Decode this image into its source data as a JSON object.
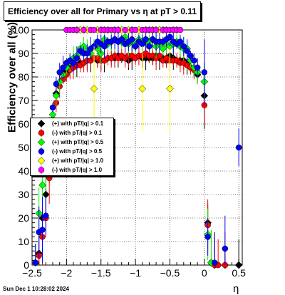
{
  "chart_data": {
    "type": "scatter",
    "title": "Efficiency over all for Primary vs    η at pT > 0.11",
    "xlabel": "η",
    "ylabel": "Efficiency over all (%)",
    "xlim": [
      -2.5,
      0.55
    ],
    "ylim": [
      0,
      100
    ],
    "xticks": [
      -2.5,
      -2,
      -1.5,
      -1,
      -0.5,
      0,
      0.5
    ],
    "yticks": [
      0,
      10,
      20,
      30,
      40,
      50,
      60,
      70,
      80,
      90,
      100
    ],
    "grid": true,
    "legend_position": "left-middle",
    "series": [
      {
        "name": "(+) with pT/|q| > 0.1",
        "color": "#000000",
        "marker": "diamond",
        "points": [
          [
            -2.45,
            1
          ],
          [
            -2.4,
            5
          ],
          [
            -2.35,
            20
          ],
          [
            -2.3,
            30
          ],
          [
            -2.25,
            46
          ],
          [
            -2.2,
            62
          ],
          [
            -2.15,
            73
          ],
          [
            -2.05,
            82
          ],
          [
            -2.0,
            82
          ],
          [
            -1.95,
            84
          ],
          [
            -1.9,
            85
          ],
          [
            -1.85,
            85
          ],
          [
            -1.8,
            86
          ],
          [
            -1.75,
            86
          ],
          [
            -1.7,
            87
          ],
          [
            -1.65,
            87
          ],
          [
            -1.6,
            88
          ],
          [
            -1.55,
            87
          ],
          [
            -1.5,
            87
          ],
          [
            -1.45,
            87
          ],
          [
            -1.4,
            88
          ],
          [
            -1.35,
            88
          ],
          [
            -1.3,
            88
          ],
          [
            -1.25,
            89
          ],
          [
            -1.2,
            88
          ],
          [
            -1.15,
            88
          ],
          [
            -1.1,
            87
          ],
          [
            -1.05,
            88
          ],
          [
            -1.0,
            88
          ],
          [
            -0.95,
            89
          ],
          [
            -0.9,
            88
          ],
          [
            -0.85,
            88
          ],
          [
            -0.8,
            88
          ],
          [
            -0.75,
            88
          ],
          [
            -0.7,
            89
          ],
          [
            -0.65,
            88
          ],
          [
            -0.6,
            88
          ],
          [
            -0.55,
            87
          ],
          [
            -0.5,
            89
          ],
          [
            -0.45,
            88
          ],
          [
            -0.4,
            87
          ],
          [
            -0.35,
            87
          ],
          [
            -0.3,
            87
          ],
          [
            -0.25,
            86
          ],
          [
            -0.2,
            84
          ],
          [
            -0.15,
            83
          ],
          [
            -0.1,
            81
          ],
          [
            0.0,
            72
          ],
          [
            0.05,
            18
          ],
          [
            0.1,
            1
          ],
          [
            0.15,
            0
          ],
          [
            0.3,
            0
          ],
          [
            0.5,
            0
          ]
        ]
      },
      {
        "name": "(-) with pT/|q| > 0.1",
        "color": "#ff0000",
        "marker": "circle",
        "points": [
          [
            -2.45,
            1
          ],
          [
            -2.4,
            4
          ],
          [
            -2.35,
            12
          ],
          [
            -2.3,
            20
          ],
          [
            -2.25,
            37
          ],
          [
            -2.2,
            55
          ],
          [
            -2.15,
            69
          ],
          [
            -2.1,
            76
          ],
          [
            -2.05,
            79
          ],
          [
            -2.0,
            81
          ],
          [
            -1.95,
            83
          ],
          [
            -1.9,
            84
          ],
          [
            -1.85,
            85
          ],
          [
            -1.8,
            85
          ],
          [
            -1.75,
            86
          ],
          [
            -1.7,
            87
          ],
          [
            -1.65,
            87
          ],
          [
            -1.6,
            88
          ],
          [
            -1.55,
            88
          ],
          [
            -1.5,
            87
          ],
          [
            -1.45,
            87
          ],
          [
            -1.4,
            88
          ],
          [
            -1.35,
            88
          ],
          [
            -1.3,
            89
          ],
          [
            -1.25,
            88
          ],
          [
            -1.2,
            89
          ],
          [
            -1.15,
            88
          ],
          [
            -1.1,
            89
          ],
          [
            -1.05,
            89
          ],
          [
            -1.0,
            88
          ],
          [
            -0.95,
            89
          ],
          [
            -0.9,
            89
          ],
          [
            -0.85,
            90
          ],
          [
            -0.8,
            89
          ],
          [
            -0.75,
            89
          ],
          [
            -0.7,
            88
          ],
          [
            -0.65,
            89
          ],
          [
            -0.6,
            87
          ],
          [
            -0.55,
            88
          ],
          [
            -0.5,
            87
          ],
          [
            -0.45,
            87
          ],
          [
            -0.4,
            87
          ],
          [
            -0.35,
            86
          ],
          [
            -0.3,
            86
          ],
          [
            -0.25,
            85
          ],
          [
            -0.2,
            84
          ],
          [
            -0.15,
            83
          ],
          [
            -0.1,
            82
          ],
          [
            0.0,
            68
          ],
          [
            0.05,
            17
          ],
          [
            0.1,
            1
          ],
          [
            0.15,
            0
          ],
          [
            0.2,
            0
          ],
          [
            0.3,
            0
          ]
        ]
      },
      {
        "name": "(+) with pT/|q| > 0.5",
        "color": "#00ff00",
        "marker": "diamond",
        "points": [
          [
            -2.45,
            1
          ],
          [
            -2.4,
            22
          ],
          [
            -2.35,
            34
          ],
          [
            -2.3,
            40
          ],
          [
            -2.25,
            52
          ],
          [
            -2.2,
            64
          ],
          [
            -2.15,
            72
          ],
          [
            -2.1,
            78
          ],
          [
            -2.05,
            81
          ],
          [
            -2.0,
            84
          ],
          [
            -1.95,
            86
          ],
          [
            -1.9,
            88
          ],
          [
            -1.85,
            89
          ],
          [
            -1.8,
            92
          ],
          [
            -1.75,
            93
          ],
          [
            -1.7,
            91
          ],
          [
            -1.65,
            90
          ],
          [
            -1.6,
            93
          ],
          [
            -1.55,
            92
          ],
          [
            -1.5,
            90
          ],
          [
            -1.45,
            96
          ],
          [
            -1.4,
            94
          ],
          [
            -1.35,
            95
          ],
          [
            -1.3,
            96
          ],
          [
            -1.25,
            95
          ],
          [
            -1.2,
            95
          ],
          [
            -1.15,
            97
          ],
          [
            -1.1,
            94
          ],
          [
            -1.05,
            95
          ],
          [
            -1.0,
            93
          ],
          [
            -0.95,
            96
          ],
          [
            -0.9,
            95
          ],
          [
            -0.85,
            95
          ],
          [
            -0.8,
            95
          ],
          [
            -0.75,
            96
          ],
          [
            -0.7,
            93
          ],
          [
            -0.65,
            94
          ],
          [
            -0.6,
            92
          ],
          [
            -0.55,
            94
          ],
          [
            -0.5,
            93
          ],
          [
            -0.45,
            94
          ],
          [
            -0.4,
            95
          ],
          [
            -0.35,
            93
          ],
          [
            -0.3,
            92
          ],
          [
            -0.25,
            92
          ],
          [
            -0.2,
            87
          ],
          [
            -0.15,
            84
          ],
          [
            -0.1,
            82
          ],
          [
            0.0,
            78
          ],
          [
            0.05,
            13
          ],
          [
            0.1,
            1
          ]
        ]
      },
      {
        "name": "(-) with pT/|q| > 0.5",
        "color": "#0000ff",
        "marker": "circle",
        "points": [
          [
            -2.45,
            1
          ],
          [
            -2.4,
            14
          ],
          [
            -2.35,
            15
          ],
          [
            -2.3,
            21
          ],
          [
            -2.2,
            67
          ],
          [
            -2.15,
            77
          ],
          [
            -2.1,
            82
          ],
          [
            -2.05,
            84
          ],
          [
            -2.0,
            86
          ],
          [
            -1.95,
            87
          ],
          [
            -1.9,
            86
          ],
          [
            -1.85,
            88
          ],
          [
            -1.8,
            91
          ],
          [
            -1.75,
            90
          ],
          [
            -1.7,
            90
          ],
          [
            -1.65,
            92
          ],
          [
            -1.6,
            93
          ],
          [
            -1.55,
            95
          ],
          [
            -1.5,
            94
          ],
          [
            -1.45,
            93
          ],
          [
            -1.4,
            95
          ],
          [
            -1.35,
            95
          ],
          [
            -1.3,
            96
          ],
          [
            -1.25,
            95
          ],
          [
            -1.2,
            96
          ],
          [
            -1.15,
            94
          ],
          [
            -1.1,
            95
          ],
          [
            -1.05,
            96
          ],
          [
            -1.0,
            93
          ],
          [
            -0.95,
            95
          ],
          [
            -0.9,
            94
          ],
          [
            -0.85,
            96
          ],
          [
            -0.8,
            93
          ],
          [
            -0.75,
            96
          ],
          [
            -0.7,
            95
          ],
          [
            -0.65,
            95
          ],
          [
            -0.6,
            95
          ],
          [
            -0.55,
            96
          ],
          [
            -0.5,
            97
          ],
          [
            -0.45,
            95
          ],
          [
            -0.4,
            94
          ],
          [
            -0.35,
            95
          ],
          [
            -0.3,
            93
          ],
          [
            -0.25,
            91
          ],
          [
            -0.2,
            89
          ],
          [
            -0.15,
            87
          ],
          [
            -0.1,
            84
          ],
          [
            0.0,
            82
          ],
          [
            0.05,
            12
          ],
          [
            0.15,
            1
          ],
          [
            0.3,
            7
          ],
          [
            0.5,
            50
          ]
        ]
      },
      {
        "name": "(+) with pT/|q| > 1.0",
        "color": "#ffff00",
        "marker": "diamond",
        "points": [
          [
            -1.85,
            100
          ],
          [
            -1.8,
            100
          ],
          [
            -1.75,
            100
          ],
          [
            -1.7,
            100
          ],
          [
            -1.6,
            75
          ],
          [
            -1.55,
            100
          ],
          [
            -1.5,
            100
          ],
          [
            -1.45,
            100
          ],
          [
            -1.4,
            100
          ],
          [
            -1.3,
            100
          ],
          [
            -1.25,
            100
          ],
          [
            -1.2,
            100
          ],
          [
            -1.1,
            100
          ],
          [
            -1.05,
            100
          ],
          [
            -0.95,
            100
          ],
          [
            -0.9,
            75
          ],
          [
            -0.85,
            100
          ],
          [
            -0.8,
            100
          ],
          [
            -0.75,
            100
          ],
          [
            -0.7,
            100
          ],
          [
            -0.65,
            100
          ],
          [
            -0.6,
            100
          ],
          [
            -0.55,
            100
          ],
          [
            -0.5,
            75
          ],
          [
            -0.45,
            100
          ],
          [
            -0.4,
            100
          ]
        ]
      },
      {
        "name": "(-) with pT/|q| > 1.0",
        "color": "#ff00ff",
        "marker": "circle",
        "points": [
          [
            -2.0,
            100
          ],
          [
            -1.95,
            100
          ],
          [
            -1.9,
            100
          ],
          [
            -1.85,
            100
          ],
          [
            -1.75,
            100
          ],
          [
            -1.65,
            100
          ],
          [
            -1.6,
            100
          ],
          [
            -1.5,
            100
          ],
          [
            -1.45,
            100
          ],
          [
            -1.4,
            100
          ],
          [
            -1.35,
            100
          ],
          [
            -1.3,
            100
          ],
          [
            -1.25,
            100
          ],
          [
            -1.15,
            100
          ],
          [
            -1.05,
            100
          ],
          [
            -1.0,
            100
          ],
          [
            -0.9,
            100
          ],
          [
            -0.85,
            100
          ],
          [
            -0.8,
            100
          ],
          [
            -0.75,
            100
          ],
          [
            -0.7,
            100
          ],
          [
            -0.6,
            100
          ],
          [
            -0.55,
            100
          ],
          [
            -0.5,
            100
          ],
          [
            -0.45,
            100
          ],
          [
            -0.4,
            100
          ],
          [
            -0.35,
            100
          ]
        ]
      }
    ]
  },
  "page": {
    "title": "Efficiency over all for Primary vs    η at pT > 0.11",
    "timestamp": "Sun Dec  1 10:28:02 2024"
  }
}
